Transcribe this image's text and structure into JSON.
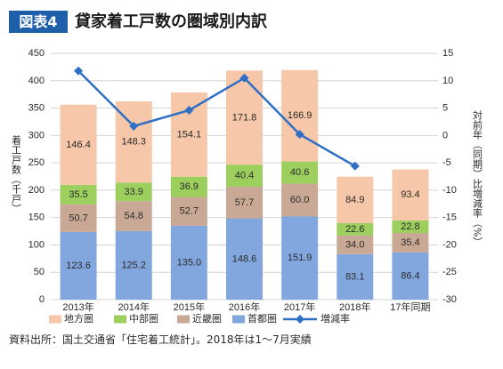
{
  "header": {
    "badge": "図表4",
    "title": "貸家着工戸数の圏域別内訳"
  },
  "colors": {
    "badge_background": "#1f5faa",
    "badge_text": "#ffffff",
    "title_text": "#1a1a1a",
    "grid": "#d4d4d4",
    "label_text": "#2b2b2b"
  },
  "chart_data": {
    "type": "bar",
    "stacked": true,
    "categories": [
      "2013年",
      "2014年",
      "2015年",
      "2016年",
      "2017年",
      "2018年",
      "17年同期"
    ],
    "series": [
      {
        "name": "首都圏",
        "values": [
          123.6,
          125.2,
          135.0,
          148.6,
          151.9,
          83.1,
          86.4
        ],
        "color": "#82a7de"
      },
      {
        "name": "近畿圏",
        "values": [
          50.7,
          54.8,
          52.7,
          57.7,
          60.0,
          34.0,
          35.4
        ],
        "color": "#c9a995"
      },
      {
        "name": "中部圏",
        "values": [
          35.5,
          33.9,
          36.9,
          40.4,
          40.6,
          22.6,
          22.8
        ],
        "color": "#9dcf5e"
      },
      {
        "name": "地方圏",
        "values": [
          146.4,
          148.3,
          154.1,
          171.8,
          166.9,
          84.9,
          93.4
        ],
        "color": "#f6c7a8"
      }
    ],
    "line": {
      "name": "増減率",
      "secondary_axis": true,
      "values": [
        11.8,
        1.7,
        4.6,
        10.5,
        0.2,
        -5.6,
        null
      ],
      "color": "#2f6fc6"
    },
    "ylabel": "着工戸数（千戸）",
    "y2label": "対前年（同期）比増減率（%）",
    "ylim": [
      0,
      450
    ],
    "y2lim": [
      -30,
      15
    ],
    "yticks": [
      0,
      50,
      100,
      150,
      200,
      250,
      300,
      350,
      400,
      450
    ],
    "y2ticks": [
      15,
      10,
      5,
      0,
      -5,
      -10,
      -15,
      -20,
      -25,
      -30
    ],
    "grid": true,
    "data_labels": true,
    "legend": {
      "placement": "bottom"
    }
  },
  "footer": {
    "source_note": "資料出所：国土交通省「住宅着工統計」。2018年は1～7月実績"
  }
}
